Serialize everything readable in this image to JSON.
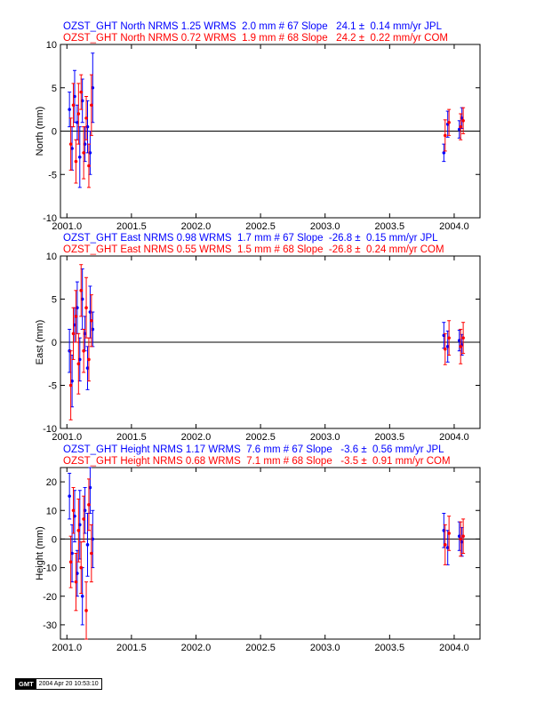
{
  "chart_data": [
    {
      "type": "scatter",
      "ylabel": "North (mm)",
      "ylim": [
        -10,
        10
      ],
      "xlim": [
        2000.95,
        2004.2
      ],
      "yticks": [
        -10,
        -5,
        0,
        5,
        10
      ],
      "xticks": [
        "2001.0",
        "2001.5",
        "2002.0",
        "2002.5",
        "2003.0",
        "2003.5",
        "2004.0"
      ],
      "title_lines": [
        {
          "color": "#0000ff",
          "text": "OZST_GHT North NRMS 1.25 WRMS  2.0 mm # 67 Slope   24.1 ±  0.14 mm/yr JPL"
        },
        {
          "color": "#ff0000",
          "text": "OZST_GHT North NRMS 0.72 WRMS  1.9 mm # 68 Slope   24.2 ±  0.22 mm/yr COM"
        }
      ],
      "series": [
        {
          "color": "#0000ff",
          "x": [
            2001.02,
            2001.04,
            2001.06,
            2001.08,
            2001.1,
            2001.12,
            2001.14,
            2001.16,
            2001.18,
            2001.2,
            2003.92,
            2003.95,
            2004.04,
            2004.06
          ],
          "y": [
            2.5,
            -2.0,
            4.0,
            1.0,
            -3.0,
            3.5,
            -1.5,
            0.5,
            -2.5,
            5.0,
            -2.5,
            0.8,
            0.2,
            1.5
          ],
          "err": [
            2.0,
            2.5,
            3.0,
            2.0,
            3.5,
            2.5,
            2.0,
            3.0,
            2.5,
            4.0,
            1.0,
            1.5,
            1.0,
            1.2
          ]
        },
        {
          "color": "#ff0000",
          "x": [
            2001.03,
            2001.05,
            2001.07,
            2001.09,
            2001.11,
            2001.13,
            2001.15,
            2001.17,
            2001.19,
            2003.93,
            2003.96,
            2004.05,
            2004.07
          ],
          "y": [
            -1.5,
            3.0,
            -3.5,
            2.0,
            4.5,
            -2.5,
            1.5,
            -4.0,
            3.0,
            -0.5,
            1.0,
            0.5,
            1.2
          ],
          "err": [
            3.0,
            2.5,
            2.5,
            3.5,
            2.0,
            3.0,
            2.5,
            2.5,
            3.5,
            1.8,
            1.5,
            1.5,
            1.5
          ]
        }
      ]
    },
    {
      "type": "scatter",
      "ylabel": "East (mm)",
      "ylim": [
        -10,
        10
      ],
      "xlim": [
        2000.95,
        2004.2
      ],
      "yticks": [
        -10,
        -5,
        0,
        5,
        10
      ],
      "xticks": [
        "2001.0",
        "2001.5",
        "2002.0",
        "2002.5",
        "2003.0",
        "2003.5",
        "2004.0"
      ],
      "title_lines": [
        {
          "color": "#0000ff",
          "text": "OZST_GHT East NRMS 0.98 WRMS  1.7 mm # 67 Slope  -26.8 ±  0.15 mm/yr JPL"
        },
        {
          "color": "#ff0000",
          "text": "OZST_GHT East NRMS 0.55 WRMS  1.5 mm # 68 Slope  -26.8 ±  0.24 mm/yr COM"
        }
      ],
      "series": [
        {
          "color": "#0000ff",
          "x": [
            2001.02,
            2001.04,
            2001.06,
            2001.08,
            2001.1,
            2001.12,
            2001.14,
            2001.16,
            2001.18,
            2001.2,
            2003.92,
            2003.95,
            2004.04,
            2004.06
          ],
          "y": [
            -1.0,
            -4.5,
            2.0,
            4.0,
            -2.0,
            5.0,
            1.0,
            -3.0,
            3.5,
            1.5,
            0.8,
            -0.5,
            0.2,
            -0.3
          ],
          "err": [
            2.5,
            3.0,
            2.0,
            3.0,
            2.5,
            3.5,
            2.0,
            2.5,
            3.0,
            2.0,
            1.5,
            1.8,
            1.2,
            1.2
          ]
        },
        {
          "color": "#ff0000",
          "x": [
            2001.03,
            2001.05,
            2001.07,
            2001.09,
            2001.11,
            2001.13,
            2001.15,
            2001.17,
            2001.19,
            2003.93,
            2003.96,
            2004.05,
            2004.07
          ],
          "y": [
            -5.0,
            1.0,
            3.0,
            -2.5,
            6.0,
            -1.0,
            4.0,
            -2.0,
            2.5,
            -0.8,
            0.5,
            -0.5,
            0.5
          ],
          "err": [
            4.0,
            3.0,
            3.0,
            3.5,
            3.0,
            2.5,
            3.5,
            2.5,
            3.0,
            1.8,
            2.0,
            2.0,
            1.8
          ]
        }
      ]
    },
    {
      "type": "scatter",
      "ylabel": "Height (mm)",
      "ylim": [
        -35,
        25
      ],
      "xlim": [
        2000.95,
        2004.2
      ],
      "yticks": [
        -30,
        -20,
        -10,
        0,
        10,
        20
      ],
      "xticks": [
        "2001.0",
        "2001.5",
        "2002.0",
        "2002.5",
        "2003.0",
        "2003.5",
        "2004.0"
      ],
      "title_lines": [
        {
          "color": "#0000ff",
          "text": "OZST_GHT Height NRMS 1.17 WRMS  7.6 mm # 67 Slope   -3.6 ±  0.56 mm/yr JPL"
        },
        {
          "color": "#ff0000",
          "text": "OZST_GHT Height NRMS 0.68 WRMS  7.1 mm # 68 Slope   -3.5 ±  0.91 mm/yr COM"
        }
      ],
      "series": [
        {
          "color": "#0000ff",
          "x": [
            2001.02,
            2001.04,
            2001.06,
            2001.08,
            2001.1,
            2001.12,
            2001.14,
            2001.16,
            2001.18,
            2001.2,
            2003.92,
            2003.95,
            2004.04,
            2004.06
          ],
          "y": [
            15,
            -5,
            8,
            -12,
            5,
            -20,
            10,
            -2,
            18,
            0,
            3,
            -3,
            1,
            -1
          ],
          "err": [
            8,
            10,
            9,
            8,
            12,
            10,
            8,
            11,
            9,
            10,
            6,
            6,
            5,
            5
          ]
        },
        {
          "color": "#ff0000",
          "x": [
            2001.03,
            2001.05,
            2001.07,
            2001.09,
            2001.11,
            2001.13,
            2001.15,
            2001.17,
            2001.19,
            2003.93,
            2003.96,
            2004.05,
            2004.07
          ],
          "y": [
            -8,
            10,
            -15,
            3,
            -10,
            7,
            -25,
            12,
            -5,
            -2,
            2,
            0,
            1
          ],
          "err": [
            9,
            8,
            10,
            11,
            9,
            8,
            10,
            9,
            10,
            7,
            6,
            6,
            6
          ]
        }
      ]
    }
  ],
  "stamp": {
    "logo": "GMT",
    "date": "2004 Apr 20 10:53:10"
  }
}
